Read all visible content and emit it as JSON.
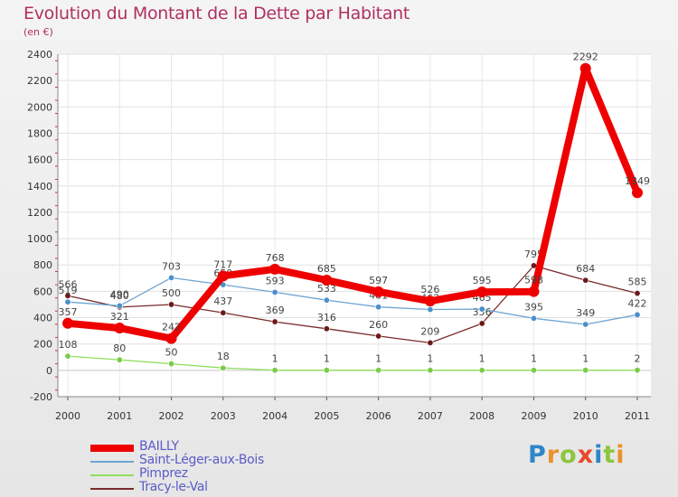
{
  "title": "Evolution du Montant de la Dette par Habitant",
  "subtitle": "(en €)",
  "logo": {
    "p": "P",
    "r": "r",
    "o": "o",
    "x": "x",
    "i1": "i",
    "t": "t",
    "i2": "i"
  },
  "chart_data": {
    "type": "line",
    "title": "Evolution du Montant de la Dette par Habitant",
    "ylabel": "(en €)",
    "xlabel": "",
    "ylim": [
      -200,
      2400
    ],
    "yticks": [
      -200,
      0,
      200,
      400,
      600,
      800,
      1000,
      1200,
      1400,
      1600,
      1800,
      2000,
      2200,
      2400
    ],
    "categories": [
      "2000",
      "2001",
      "2002",
      "2003",
      "2004",
      "2005",
      "2006",
      "2007",
      "2008",
      "2009",
      "2010",
      "2011"
    ],
    "legend_position": "bottom-left",
    "series": [
      {
        "name": "Pimprez",
        "color": "#8fde5c",
        "marker": "#7acb4a",
        "width": 1.3,
        "values": [
          108,
          80,
          50,
          18,
          1,
          1,
          1,
          1,
          1,
          1,
          1,
          2
        ]
      },
      {
        "name": "Tracy-le-Val",
        "color": "#7a2a2a",
        "marker": "#6b1a1a",
        "width": 1.3,
        "values": [
          566,
          480,
          500,
          437,
          369,
          316,
          260,
          209,
          356,
          795,
          684,
          585
        ]
      },
      {
        "name": "Saint-Léger-aux-Bois",
        "color": "#6ea4d2",
        "marker": "#4a8fca",
        "width": 1.3,
        "values": [
          519,
          490,
          703,
          650,
          593,
          533,
          481,
          462,
          465,
          395,
          349,
          422
        ]
      },
      {
        "name": "BAILLY",
        "color": "#ee0000",
        "marker": "#ee0000",
        "width": 8,
        "values": [
          357,
          321,
          242,
          717,
          768,
          685,
          597,
          526,
          595,
          598,
          2292,
          1349
        ]
      }
    ],
    "legend_order": [
      "BAILLY",
      "Saint-Léger-aux-Bois",
      "Pimprez",
      "Tracy-le-Val"
    ]
  }
}
